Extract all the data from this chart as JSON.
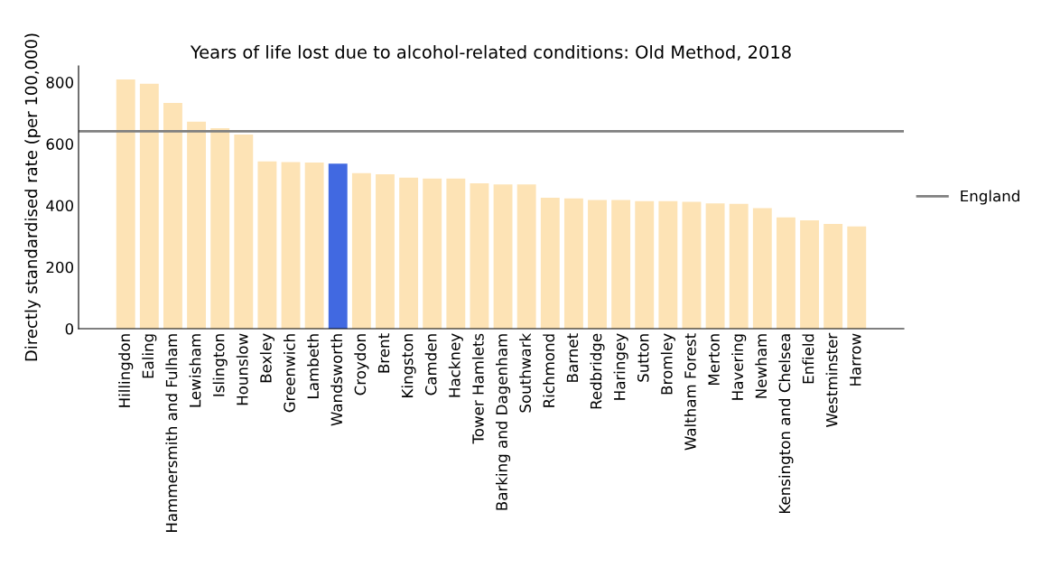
{
  "chart_data": {
    "type": "bar",
    "title": "Years of life lost due to alcohol-related conditions: Old Method, 2018",
    "ylabel": "Directly standardised rate (per 100,000)",
    "categories": [
      "Hillingdon",
      "Ealing",
      "Hammersmith and Fulham",
      "Lewisham",
      "Islington",
      "Hounslow",
      "Bexley",
      "Greenwich",
      "Lambeth",
      "Wandsworth",
      "Croydon",
      "Brent",
      "Kingston",
      "Camden",
      "Hackney",
      "Tower Hamlets",
      "Barking and Dagenham",
      "Southwark",
      "Richmond",
      "Barnet",
      "Redbridge",
      "Haringey",
      "Sutton",
      "Bromley",
      "Waltham Forest",
      "Merton",
      "Havering",
      "Newham",
      "Kensington and Chelsea",
      "Enfield",
      "Westminster",
      "Harrow"
    ],
    "values": [
      809,
      795,
      733,
      672,
      651,
      630,
      543,
      541,
      539,
      536,
      505,
      501,
      490,
      487,
      487,
      472,
      468,
      468,
      425,
      423,
      418,
      418,
      414,
      414,
      412,
      407,
      405,
      391,
      361,
      352,
      340,
      332
    ],
    "colors": [
      "#fde3b5",
      "#fde3b5",
      "#fde3b5",
      "#fde3b5",
      "#fde3b5",
      "#fde3b5",
      "#fde3b5",
      "#fde3b5",
      "#fde3b5",
      "#4169e1",
      "#fde3b5",
      "#fde3b5",
      "#fde3b5",
      "#fde3b5",
      "#fde3b5",
      "#fde3b5",
      "#fde3b5",
      "#fde3b5",
      "#fde3b5",
      "#fde3b5",
      "#fde3b5",
      "#fde3b5",
      "#fde3b5",
      "#fde3b5",
      "#fde3b5",
      "#fde3b5",
      "#fde3b5",
      "#fde3b5",
      "#fde3b5",
      "#fde3b5",
      "#fde3b5",
      "#fde3b5"
    ],
    "ylim": [
      0,
      853
    ],
    "yticks": [
      0,
      200,
      400,
      600,
      800
    ],
    "ref_lines": [
      {
        "axis": "y",
        "value": 641,
        "label": "England",
        "color": "#808080"
      }
    ],
    "legend": "right",
    "grid": false
  }
}
